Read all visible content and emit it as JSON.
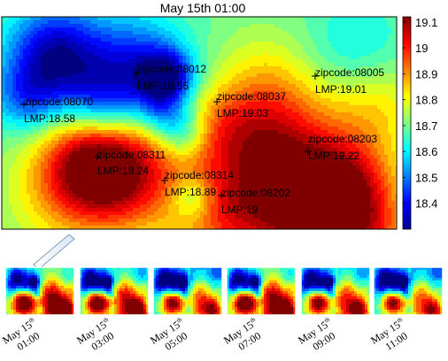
{
  "chart_data": {
    "type": "heatmap",
    "title": "May 15th 01:00",
    "colorbar": {
      "min": 18.3,
      "max": 19.12,
      "ticks": [
        "19.1",
        "19",
        "18.9",
        "18.8",
        "18.7",
        "18.6",
        "18.5",
        "18.4"
      ],
      "tick_values": [
        19.1,
        19.0,
        18.9,
        18.8,
        18.7,
        18.6,
        18.5,
        18.4
      ]
    },
    "annotations": [
      {
        "zip_label": "zipcode:08012",
        "lmp_label": "LMP:18.55",
        "lmp": 18.55
      },
      {
        "zip_label": "zipcode:08005",
        "lmp_label": "LMP:19.01",
        "lmp": 19.01
      },
      {
        "zip_label": "zipcode:08070",
        "lmp_label": "LMP:18.58",
        "lmp": 18.58
      },
      {
        "zip_label": "zipcode:08037",
        "lmp_label": "LMP:19.03",
        "lmp": 19.03
      },
      {
        "zip_label": "zipcode:08203",
        "lmp_label": "LMP:19.22",
        "lmp": 19.22
      },
      {
        "zip_label": "zipcode:08311",
        "lmp_label": "LMP:19.24",
        "lmp": 19.24
      },
      {
        "zip_label": "zipcode:08314",
        "lmp_label": "LMP:18.89",
        "lmp": 18.89
      },
      {
        "zip_label": "zipcode:08202",
        "lmp_label": "LMP:19",
        "lmp": 19.0
      }
    ],
    "thumbnails": [
      {
        "label_main": "May 15",
        "label_sup": "th",
        "label_time": "01:00"
      },
      {
        "label_main": "May 15",
        "label_sup": "th",
        "label_time": "03:00"
      },
      {
        "label_main": "May 15",
        "label_sup": "th",
        "label_time": "05:00"
      },
      {
        "label_main": "May 15",
        "label_sup": "th",
        "label_time": "07:00"
      },
      {
        "label_main": "May 15",
        "label_sup": "th",
        "label_time": "09:00"
      },
      {
        "label_main": "May 15",
        "label_sup": "th",
        "label_time": "11:00"
      }
    ]
  }
}
